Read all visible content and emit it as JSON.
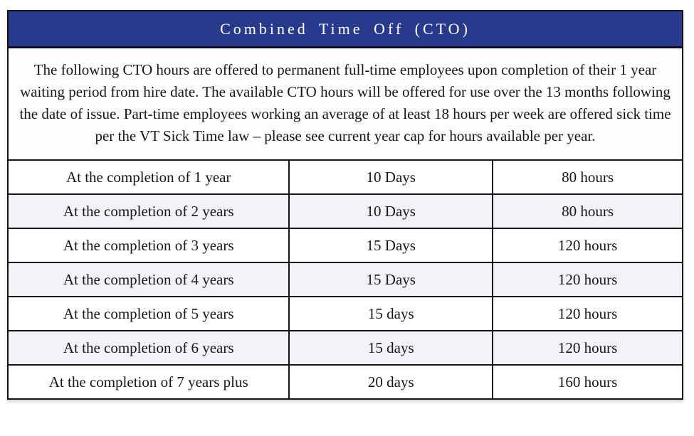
{
  "header": {
    "title": "Combined Time Off (CTO)"
  },
  "description": {
    "text": "The following CTO hours are offered to permanent full-time employees upon completion of their 1 year waiting period from hire date. The available CTO hours will be offered for use over the 13 months following the date of issue. Part-time employees working an average of at least 18 hours per week are offered sick time per the VT Sick Time law – please see current year cap for hours available per year."
  },
  "table": {
    "rows": [
      {
        "milestone": "At the completion of 1 year",
        "days": "10 Days",
        "hours": "80 hours"
      },
      {
        "milestone": "At the completion of 2 years",
        "days": "10 Days",
        "hours": "80 hours"
      },
      {
        "milestone": "At the completion of 3 years",
        "days": "15 Days",
        "hours": "120 hours"
      },
      {
        "milestone": "At the completion of 4 years",
        "days": "15 Days",
        "hours": "120 hours"
      },
      {
        "milestone": "At the completion of 5 years",
        "days": "15 days",
        "hours": "120 hours"
      },
      {
        "milestone": "At the completion of 6 years",
        "days": "15 days",
        "hours": "120 hours"
      },
      {
        "milestone": "At the completion of 7 years plus",
        "days": "20 days",
        "hours": "160 hours"
      }
    ]
  },
  "colors": {
    "header_bg": "#293a8d",
    "header_text": "#ffffff",
    "border": "#131318",
    "row_alt_bg": "#f2f2f7",
    "body_text": "#161616"
  }
}
